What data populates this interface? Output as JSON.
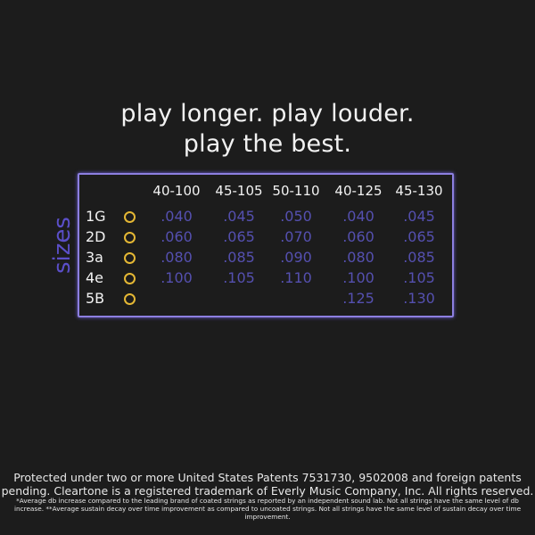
{
  "headline": {
    "line1": "play longer. play louder.",
    "line2": "play the best."
  },
  "table": {
    "side_label": "sizes",
    "columns": [
      "40-100",
      "45-105",
      "50-110",
      "40-125",
      "45-130"
    ],
    "ring_color": "#e4b734",
    "value_color": "#5550b0",
    "border_color": "#8c7fe0",
    "rows": [
      {
        "label": "1G",
        "values": [
          ".040",
          ".045",
          ".050",
          ".040",
          ".045"
        ]
      },
      {
        "label": "2D",
        "values": [
          ".060",
          ".065",
          ".070",
          ".060",
          ".065"
        ]
      },
      {
        "label": "3a",
        "values": [
          ".080",
          ".085",
          ".090",
          ".080",
          ".085"
        ]
      },
      {
        "label": "4e",
        "values": [
          ".100",
          ".105",
          ".110",
          ".100",
          ".105"
        ]
      },
      {
        "label": "5B",
        "values": [
          "",
          "",
          "",
          ".125",
          ".130"
        ]
      }
    ]
  },
  "footer": {
    "legal": "Protected under two or more United States Patents 7531730, 9502008 and foreign patents pending.  Cleartone is a registered trademark of Everly Music Company, Inc. All rights reserved.",
    "fine_print": "*Average db increase compared to the leading brand of coated strings as reported by an independent sound lab. Not all strings have the same level of db increase. **Average sustain decay over time improvement as compared to uncoated strings. Not all strings have the same level of sustain decay over time improvement."
  }
}
